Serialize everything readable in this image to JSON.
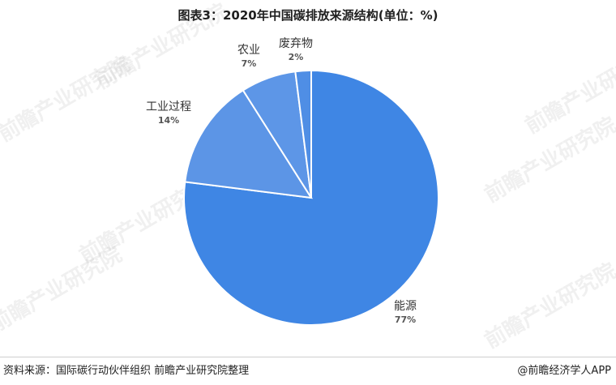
{
  "chart_data": {
    "type": "pie",
    "title": "图表3：2020年中国碳排放来源结构(单位：%)",
    "slices": [
      {
        "name": "能源",
        "value": 77,
        "label": "77%",
        "color": "#3f86e4"
      },
      {
        "name": "工业过程",
        "value": 14,
        "label": "14%",
        "color": "#5c95e6"
      },
      {
        "name": "农业",
        "value": 7,
        "label": "7%",
        "color": "#5d96e7"
      },
      {
        "name": "废弃物",
        "value": 2,
        "label": "2%",
        "color": "#4f8ee5"
      }
    ]
  },
  "watermark": {
    "text": "前瞻产业研究院"
  },
  "footer": {
    "source": "资料来源：国际碳行动伙伴组织 前瞻产业研究院整理",
    "brand": "@前瞻经济学人APP"
  }
}
